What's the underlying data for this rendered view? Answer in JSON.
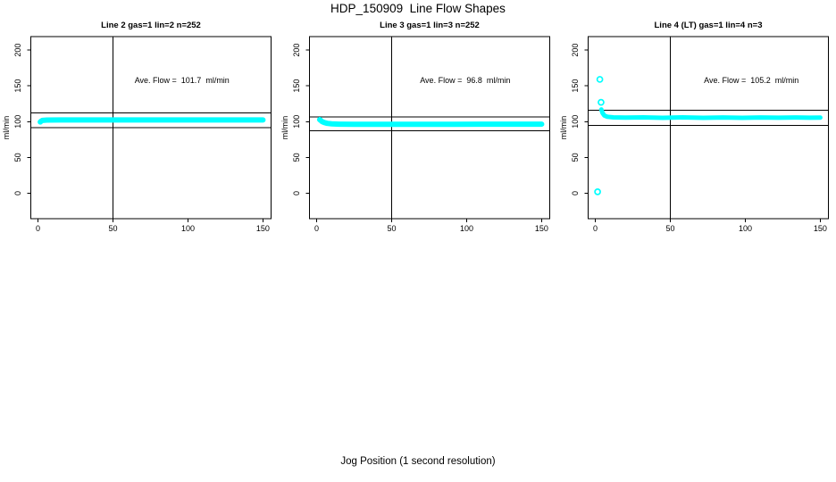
{
  "chart_data": {
    "type": "scatter",
    "title": "HDP_150909  Line Flow Shapes",
    "xlabel": "Jog Position (1 second resolution)",
    "ylabel": "ml/min",
    "x_ticks": [
      0,
      50,
      100,
      150
    ],
    "y_ticks": [
      0,
      50,
      100,
      150,
      200
    ],
    "x_domain": [
      -4.8,
      155.4
    ],
    "y_domain": [
      -35.6,
      218.8
    ],
    "grid": false,
    "legend": "none",
    "marker": "open-circle",
    "point_color": "#00ffff",
    "axis_color": "#000000",
    "plots": [
      {
        "title": "Line 2 gas=1 lin=2 n=252",
        "n": 252,
        "ave_flow": 101.7,
        "annotation": "Ave. Flow =  101.7  ml/min",
        "annotation_anchor": {
          "x": 96,
          "y": 154
        },
        "vline_x": 50,
        "ref_lines": [
          111.9,
          91.5
        ],
        "band": {
          "thickness_px": 6,
          "points": [
            [
              1.5,
              99.5
            ],
            [
              2,
              100.5
            ],
            [
              3,
              101.8
            ],
            [
              6,
              102.2
            ],
            [
              15,
              102.3
            ],
            [
              40,
              102.3
            ],
            [
              70,
              102.3
            ],
            [
              100,
              102.4
            ],
            [
              125,
              102.4
            ],
            [
              150,
              102.4
            ]
          ]
        },
        "outliers": []
      },
      {
        "title": "Line 3 gas=1 lin=3 n=252",
        "n": 252,
        "ave_flow": 96.8,
        "annotation": "Ave. Flow =  96.8  ml/min",
        "annotation_anchor": {
          "x": 99,
          "y": 154
        },
        "vline_x": 50,
        "ref_lines": [
          106.5,
          87.1
        ],
        "band": {
          "thickness_px": 6,
          "points": [
            [
              2,
              102.8
            ],
            [
              2.5,
              102
            ],
            [
              3.5,
              100.2
            ],
            [
              5,
              98.8
            ],
            [
              7,
              97.6
            ],
            [
              10,
              96.9
            ],
            [
              15,
              96.4
            ],
            [
              25,
              96.2
            ],
            [
              50,
              96.2
            ],
            [
              80,
              96.3
            ],
            [
              110,
              96.4
            ],
            [
              130,
              96.4
            ],
            [
              150,
              96.5
            ]
          ]
        },
        "outliers": []
      },
      {
        "title": "Line 4 (LT) gas=1 lin=4 n=3",
        "n": 3,
        "ave_flow": 105.2,
        "annotation": "Ave. Flow =  105.2  ml/min",
        "annotation_anchor": {
          "x": 104,
          "y": 154
        },
        "vline_x": 50,
        "ref_lines": [
          115.7,
          94.7
        ],
        "band": {
          "thickness_px": 5,
          "points": [
            [
              4,
              117
            ],
            [
              4.8,
              112
            ],
            [
              6,
              108.5
            ],
            [
              8,
              106.8
            ],
            [
              12,
              106
            ],
            [
              20,
              105.6
            ],
            [
              32,
              105.9
            ],
            [
              45,
              105.3
            ],
            [
              58,
              105.9
            ],
            [
              72,
              105.3
            ],
            [
              85,
              105.8
            ],
            [
              98,
              105.3
            ],
            [
              110,
              105.8
            ],
            [
              122,
              105.4
            ],
            [
              134,
              105.8
            ],
            [
              143,
              105.4
            ],
            [
              150,
              105.6
            ]
          ]
        },
        "outliers": [
          [
            1.5,
            2
          ],
          [
            3,
            159
          ],
          [
            3.8,
            127
          ]
        ]
      }
    ]
  }
}
